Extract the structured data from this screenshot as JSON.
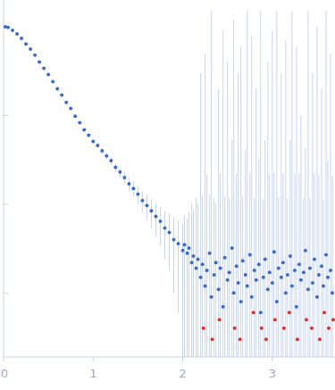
{
  "chart_data": {
    "type": "scatter",
    "log": "y",
    "grid": false,
    "tick_labels": "x",
    "xlim": [
      0,
      3.7
    ],
    "ylim": [
      0.00019,
      2
    ],
    "xticks": [
      0,
      1,
      2,
      3
    ],
    "yticks": [
      0.001,
      0.01,
      0.1
    ],
    "series": [
      {
        "color": "#3a6bc8",
        "marker": "circle",
        "x": [
          0.02,
          0.05,
          0.1,
          0.15,
          0.2,
          0.25,
          0.3,
          0.35,
          0.4,
          0.45,
          0.5,
          0.55,
          0.6,
          0.65,
          0.7,
          0.75,
          0.8,
          0.85,
          0.9,
          0.95,
          1.0,
          1.05,
          1.1,
          1.15,
          1.2,
          1.25,
          1.3,
          1.35,
          1.4,
          1.45,
          1.5,
          1.55,
          1.6,
          1.65,
          1.7,
          1.75,
          1.8,
          1.85,
          1.9,
          1.95,
          2.0,
          2.02,
          2.05,
          2.07,
          2.1,
          2.12,
          2.15,
          2.17,
          2.2,
          2.22,
          2.25,
          2.27,
          2.3,
          2.32,
          2.35,
          2.37,
          2.4,
          2.42,
          2.45,
          2.47,
          2.5,
          2.52,
          2.55,
          2.57,
          2.6,
          2.62,
          2.65,
          2.67,
          2.7,
          2.72,
          2.75,
          2.77,
          2.8,
          2.82,
          2.85,
          2.87,
          2.9,
          2.92,
          2.95,
          2.97,
          3.0,
          3.02,
          3.05,
          3.07,
          3.1,
          3.12,
          3.15,
          3.17,
          3.2,
          3.22,
          3.25,
          3.27,
          3.3,
          3.32,
          3.35,
          3.37,
          3.4,
          3.42,
          3.45,
          3.47,
          3.5,
          3.52,
          3.55,
          3.57,
          3.6,
          3.62,
          3.65,
          3.67
        ],
        "values": [
          1.0,
          0.98,
          0.91,
          0.83,
          0.74,
          0.64,
          0.56,
          0.48,
          0.4,
          0.34,
          0.29,
          0.24,
          0.2,
          0.17,
          0.14,
          0.12,
          0.098,
          0.083,
          0.069,
          0.06,
          0.051,
          0.046,
          0.04,
          0.035,
          0.031,
          0.026,
          0.023,
          0.02,
          0.017,
          0.015,
          0.013,
          0.011,
          0.0097,
          0.0084,
          0.0073,
          0.0064,
          0.0054,
          0.0048,
          0.004,
          0.0036,
          0.003,
          0.0035,
          0.0028,
          0.0032,
          0.0022,
          0.0026,
          0.0019,
          0.0024,
          0.0015,
          0.0021,
          0.0012,
          0.0018,
          0.0028,
          0.0009,
          0.0016,
          0.0022,
          0.0011,
          0.0019,
          0.0007,
          0.0025,
          0.0014,
          0.0017,
          0.0032,
          0.001,
          0.002,
          0.0013,
          0.0008,
          0.0023,
          0.0016,
          0.0012,
          0.0027,
          0.0009,
          0.0018,
          0.0014,
          0.0021,
          0.0006,
          0.0015,
          0.0024,
          0.0011,
          0.0017,
          0.0013,
          0.0029,
          0.0008,
          0.0019,
          0.0015,
          0.0022,
          0.001,
          0.0016,
          0.0026,
          0.0012,
          0.0018,
          0.0007,
          0.0021,
          0.0014,
          0.0017,
          0.003,
          0.0011,
          0.0019,
          0.0013,
          0.0024,
          0.0009,
          0.0016,
          0.002,
          0.0012,
          0.0027,
          0.0015,
          0.0018,
          0.001
        ],
        "errors": [
          0.01,
          0.01,
          0.01,
          0.01,
          0.01,
          0.01,
          0.008,
          0.007,
          0.006,
          0.005,
          0.005,
          0.004,
          0.004,
          0.003,
          0.003,
          0.003,
          0.003,
          0.003,
          0.003,
          0.003,
          0.003,
          0.003,
          0.003,
          0.003,
          0.003,
          0.003,
          0.003,
          0.003,
          0.003,
          0.003,
          0.003,
          0.003,
          0.003,
          0.003,
          0.003,
          0.003,
          0.003,
          0.003,
          0.003,
          0.003,
          0.003,
          0.004,
          0.004,
          0.005,
          0.008,
          0.006,
          0.01,
          0.008,
          0.3,
          0.01,
          0.5,
          0.02,
          0.01,
          1.5,
          0.01,
          0.008,
          0.2,
          0.02,
          0.9,
          0.01,
          0.4,
          0.01,
          0.05,
          1.2,
          0.02,
          0.3,
          0.6,
          0.01,
          0.04,
          1.5,
          0.02,
          0.8,
          0.01,
          0.2,
          0.03,
          1.5,
          0.01,
          0.05,
          0.4,
          0.02,
          0.9,
          0.02,
          1.5,
          0.01,
          0.3,
          0.02,
          0.7,
          0.01,
          0.05,
          1.5,
          0.02,
          0.6,
          0.02,
          0.1,
          0.01,
          0.04,
          1.5,
          0.01,
          0.3,
          0.02,
          1.0,
          0.02,
          0.2,
          0.01,
          1.5,
          0.03,
          0.5,
          0.02
        ]
      },
      {
        "color": "#e0302a",
        "marker": "circle",
        "x": [
          2.23,
          2.33,
          2.41,
          2.58,
          2.64,
          2.79,
          2.88,
          2.93,
          3.03,
          3.13,
          3.19,
          3.28,
          3.38,
          3.44,
          3.53,
          3.58,
          3.63,
          3.68
        ],
        "values": [
          0.0004,
          0.0003,
          0.0005,
          0.0004,
          0.0003,
          0.0006,
          0.0004,
          0.0003,
          0.0005,
          0.0004,
          0.0006,
          0.0003,
          0.0005,
          0.0004,
          0.0003,
          0.0006,
          0.0004,
          0.0005
        ]
      }
    ]
  }
}
